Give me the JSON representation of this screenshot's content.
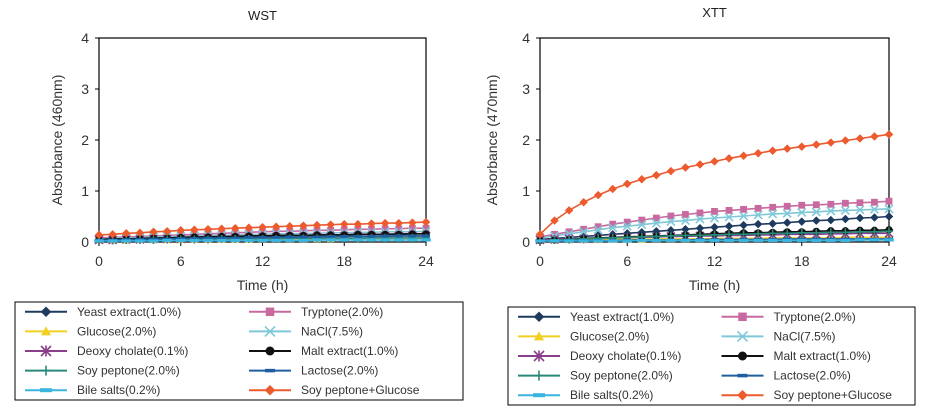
{
  "chart_data": [
    {
      "type": "line",
      "title": "WST",
      "xlabel": "Time (h)",
      "ylabel": "Absorbance (460nm)",
      "xlim": [
        0,
        24
      ],
      "ylim": [
        0,
        4
      ],
      "xticks": [
        "0",
        "6",
        "12",
        "18",
        "24"
      ],
      "yticks": [
        "0",
        "1",
        "2",
        "3",
        "4"
      ],
      "grid": false,
      "legend_position": "bottom",
      "x": [
        0,
        1,
        2,
        3,
        4,
        5,
        6,
        7,
        8,
        9,
        10,
        11,
        12,
        13,
        14,
        15,
        16,
        17,
        18,
        19,
        20,
        21,
        22,
        23,
        24
      ],
      "series": [
        {
          "name": "Yeast extract(1.0%)",
          "color": "#1f3a5f",
          "marker": "diamond",
          "values": [
            0.05,
            0.06,
            0.07,
            0.07,
            0.08,
            0.09,
            0.09,
            0.1,
            0.1,
            0.11,
            0.11,
            0.12,
            0.12,
            0.12,
            0.13,
            0.13,
            0.14,
            0.14,
            0.14,
            0.15,
            0.15,
            0.15,
            0.16,
            0.16,
            0.16
          ]
        },
        {
          "name": "Tryptone(2.0%)",
          "color": "#c86aa0",
          "marker": "square",
          "values": [
            0.08,
            0.09,
            0.1,
            0.11,
            0.12,
            0.13,
            0.14,
            0.15,
            0.16,
            0.17,
            0.18,
            0.19,
            0.2,
            0.21,
            0.21,
            0.22,
            0.23,
            0.23,
            0.24,
            0.25,
            0.25,
            0.26,
            0.26,
            0.27,
            0.27
          ]
        },
        {
          "name": "Glucose(2.0%)",
          "color": "#f0d020",
          "marker": "triangle",
          "values": [
            0.03,
            0.03,
            0.03,
            0.04,
            0.04,
            0.04,
            0.04,
            0.05,
            0.05,
            0.05,
            0.05,
            0.05,
            0.06,
            0.06,
            0.06,
            0.06,
            0.06,
            0.06,
            0.07,
            0.07,
            0.07,
            0.07,
            0.07,
            0.07,
            0.08
          ]
        },
        {
          "name": "NaCl(7.5%)",
          "color": "#7fc8d8",
          "marker": "x",
          "values": [
            0.06,
            0.07,
            0.08,
            0.09,
            0.1,
            0.11,
            0.11,
            0.12,
            0.13,
            0.13,
            0.14,
            0.15,
            0.15,
            0.16,
            0.16,
            0.17,
            0.17,
            0.18,
            0.18,
            0.19,
            0.19,
            0.2,
            0.2,
            0.2,
            0.21
          ]
        },
        {
          "name": "Deoxy cholate(0.1%)",
          "color": "#8a3f8a",
          "marker": "star",
          "values": [
            0.04,
            0.04,
            0.05,
            0.05,
            0.06,
            0.06,
            0.06,
            0.07,
            0.07,
            0.08,
            0.08,
            0.08,
            0.09,
            0.09,
            0.09,
            0.1,
            0.1,
            0.1,
            0.11,
            0.11,
            0.11,
            0.11,
            0.12,
            0.12,
            0.12
          ]
        },
        {
          "name": "Malt extract(1.0%)",
          "color": "#111111",
          "marker": "circle",
          "values": [
            0.05,
            0.06,
            0.06,
            0.07,
            0.08,
            0.08,
            0.09,
            0.1,
            0.1,
            0.11,
            0.11,
            0.12,
            0.12,
            0.13,
            0.13,
            0.13,
            0.14,
            0.14,
            0.14,
            0.15,
            0.15,
            0.15,
            0.15,
            0.16,
            0.16
          ]
        },
        {
          "name": "Soy peptone(2.0%)",
          "color": "#2a8a7a",
          "marker": "plus",
          "values": [
            0.03,
            0.03,
            0.04,
            0.04,
            0.04,
            0.05,
            0.05,
            0.05,
            0.05,
            0.06,
            0.06,
            0.06,
            0.06,
            0.06,
            0.07,
            0.07,
            0.07,
            0.07,
            0.07,
            0.07,
            0.08,
            0.08,
            0.08,
            0.08,
            0.08
          ]
        },
        {
          "name": "Lactose(2.0%)",
          "color": "#1f5fa0",
          "marker": "dash",
          "values": [
            0.04,
            0.04,
            0.05,
            0.05,
            0.06,
            0.06,
            0.07,
            0.07,
            0.08,
            0.08,
            0.08,
            0.09,
            0.09,
            0.09,
            0.1,
            0.1,
            0.1,
            0.11,
            0.11,
            0.11,
            0.11,
            0.12,
            0.12,
            0.12,
            0.12
          ]
        },
        {
          "name": "Bile salts(0.2%)",
          "color": "#3cb4e0",
          "marker": "bar",
          "values": [
            0.02,
            0.02,
            0.02,
            0.02,
            0.02,
            0.03,
            0.03,
            0.03,
            0.03,
            0.03,
            0.03,
            0.03,
            0.03,
            0.03,
            0.03,
            0.03,
            0.04,
            0.04,
            0.04,
            0.04,
            0.04,
            0.04,
            0.04,
            0.04,
            0.04
          ]
        },
        {
          "name": "Soy peptone+Glucose",
          "color": "#ec5a2e",
          "marker": "diamond",
          "values": [
            0.14,
            0.15,
            0.17,
            0.18,
            0.2,
            0.21,
            0.23,
            0.24,
            0.25,
            0.26,
            0.27,
            0.28,
            0.29,
            0.3,
            0.31,
            0.32,
            0.33,
            0.34,
            0.35,
            0.35,
            0.36,
            0.37,
            0.37,
            0.38,
            0.39
          ]
        }
      ]
    },
    {
      "type": "line",
      "title": "XTT",
      "xlabel": "Time (h)",
      "ylabel": "Absorbance (470nm)",
      "xlim": [
        0,
        24
      ],
      "ylim": [
        0,
        4
      ],
      "xticks": [
        "0",
        "6",
        "12",
        "18",
        "24"
      ],
      "yticks": [
        "0",
        "1",
        "2",
        "3",
        "4"
      ],
      "grid": false,
      "legend_position": "bottom",
      "x": [
        0,
        1,
        2,
        3,
        4,
        5,
        6,
        7,
        8,
        9,
        10,
        11,
        12,
        13,
        14,
        15,
        16,
        17,
        18,
        19,
        20,
        21,
        22,
        23,
        24
      ],
      "series": [
        {
          "name": "Yeast extract(1.0%)",
          "color": "#1f3a5f",
          "marker": "diamond",
          "values": [
            0.05,
            0.07,
            0.09,
            0.11,
            0.13,
            0.15,
            0.17,
            0.19,
            0.21,
            0.23,
            0.25,
            0.27,
            0.29,
            0.31,
            0.33,
            0.35,
            0.36,
            0.38,
            0.4,
            0.42,
            0.43,
            0.45,
            0.47,
            0.48,
            0.5
          ]
        },
        {
          "name": "Tryptone(2.0%)",
          "color": "#c86aa0",
          "marker": "square",
          "values": [
            0.1,
            0.15,
            0.2,
            0.25,
            0.3,
            0.35,
            0.39,
            0.43,
            0.47,
            0.51,
            0.54,
            0.57,
            0.6,
            0.62,
            0.64,
            0.66,
            0.68,
            0.7,
            0.72,
            0.73,
            0.74,
            0.76,
            0.77,
            0.78,
            0.8
          ]
        },
        {
          "name": "Glucose(2.0%)",
          "color": "#f0d020",
          "marker": "triangle",
          "values": [
            0.03,
            0.03,
            0.04,
            0.04,
            0.04,
            0.05,
            0.05,
            0.05,
            0.06,
            0.06,
            0.06,
            0.06,
            0.07,
            0.07,
            0.07,
            0.07,
            0.08,
            0.08,
            0.08,
            0.08,
            0.08,
            0.09,
            0.09,
            0.09,
            0.09
          ]
        },
        {
          "name": "NaCl(7.5%)",
          "color": "#7fc8d8",
          "marker": "x",
          "values": [
            0.08,
            0.12,
            0.16,
            0.2,
            0.24,
            0.28,
            0.31,
            0.34,
            0.37,
            0.4,
            0.42,
            0.45,
            0.47,
            0.49,
            0.51,
            0.53,
            0.55,
            0.56,
            0.58,
            0.59,
            0.61,
            0.62,
            0.63,
            0.64,
            0.65
          ]
        },
        {
          "name": "Deoxy cholate(0.1%)",
          "color": "#8a3f8a",
          "marker": "star",
          "values": [
            0.04,
            0.05,
            0.06,
            0.06,
            0.07,
            0.08,
            0.09,
            0.09,
            0.1,
            0.11,
            0.11,
            0.12,
            0.12,
            0.13,
            0.13,
            0.14,
            0.14,
            0.15,
            0.15,
            0.15,
            0.16,
            0.16,
            0.17,
            0.17,
            0.17
          ]
        },
        {
          "name": "Malt extract(1.0%)",
          "color": "#111111",
          "marker": "circle",
          "values": [
            0.03,
            0.04,
            0.05,
            0.07,
            0.08,
            0.09,
            0.1,
            0.11,
            0.12,
            0.13,
            0.14,
            0.15,
            0.16,
            0.17,
            0.18,
            0.18,
            0.19,
            0.2,
            0.2,
            0.21,
            0.22,
            0.22,
            0.23,
            0.23,
            0.24
          ]
        },
        {
          "name": "Soy peptone(2.0%)",
          "color": "#2a8a7a",
          "marker": "plus",
          "values": [
            0.03,
            0.04,
            0.05,
            0.06,
            0.07,
            0.08,
            0.09,
            0.1,
            0.11,
            0.12,
            0.13,
            0.13,
            0.14,
            0.15,
            0.15,
            0.16,
            0.17,
            0.17,
            0.18,
            0.18,
            0.19,
            0.19,
            0.2,
            0.2,
            0.21
          ]
        },
        {
          "name": "Lactose(2.0%)",
          "color": "#1f5fa0",
          "marker": "dash",
          "values": [
            0.02,
            0.02,
            0.03,
            0.03,
            0.03,
            0.03,
            0.04,
            0.04,
            0.04,
            0.04,
            0.04,
            0.05,
            0.05,
            0.05,
            0.05,
            0.05,
            0.05,
            0.06,
            0.06,
            0.06,
            0.06,
            0.06,
            0.06,
            0.06,
            0.06
          ]
        },
        {
          "name": "Bile salts(0.2%)",
          "color": "#3cb4e0",
          "marker": "bar",
          "values": [
            0.02,
            0.02,
            0.02,
            0.02,
            0.02,
            0.02,
            0.02,
            0.03,
            0.03,
            0.03,
            0.03,
            0.03,
            0.03,
            0.03,
            0.03,
            0.03,
            0.03,
            0.03,
            0.03,
            0.03,
            0.03,
            0.03,
            0.04,
            0.04,
            0.04
          ]
        },
        {
          "name": "Soy peptone+Glucose",
          "color": "#ec5a2e",
          "marker": "diamond",
          "values": [
            0.15,
            0.42,
            0.62,
            0.78,
            0.92,
            1.04,
            1.14,
            1.23,
            1.31,
            1.39,
            1.46,
            1.52,
            1.58,
            1.64,
            1.69,
            1.74,
            1.79,
            1.83,
            1.87,
            1.91,
            1.95,
            1.99,
            2.03,
            2.07,
            2.11
          ]
        }
      ]
    }
  ]
}
